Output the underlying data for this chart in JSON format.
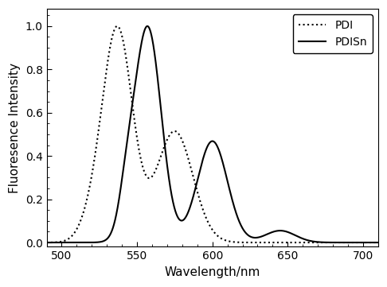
{
  "title": "",
  "xlabel": "Wavelength/nm",
  "ylabel": "Fluoresence Intensity",
  "xlim": [
    490,
    710
  ],
  "ylim": [
    -0.02,
    1.08
  ],
  "xticks": [
    500,
    550,
    600,
    650,
    700
  ],
  "yticks": [
    0.0,
    0.2,
    0.4,
    0.6,
    0.8,
    1.0
  ],
  "legend_entries": [
    "PDI",
    "PDISn"
  ],
  "pdi_color": "#000000",
  "pdisn_color": "#000000",
  "background_color": "#ffffff",
  "pdi_linestyle": "dotted",
  "pdisn_linestyle": "solid",
  "pdi_peak": 537,
  "pdisn_peak1": 557,
  "pdisn_peak2": 600
}
